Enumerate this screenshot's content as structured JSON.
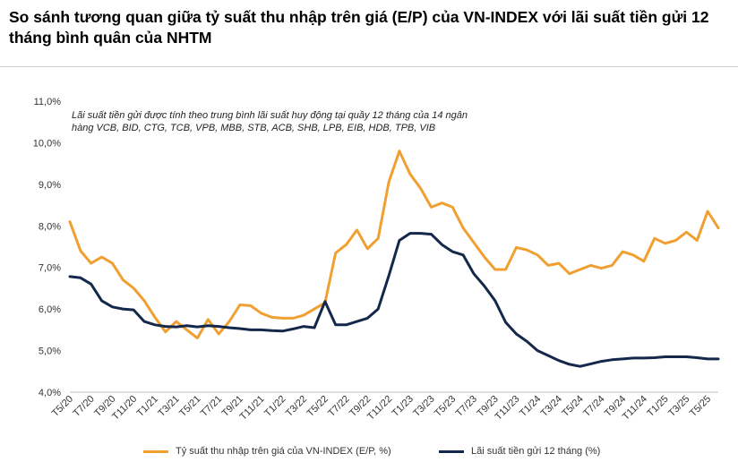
{
  "title": "So sánh tương quan giữa tỷ suất thu nhập trên giá (E/P) của VN-INDEX với lãi suất tiền gửi 12 tháng bình quân của NHTM",
  "chart_data": {
    "type": "line",
    "title": "So sánh tương quan giữa tỷ suất thu nhập trên giá (E/P) của VN-INDEX với lãi suất tiền gửi 12 tháng bình quân của NHTM",
    "annotation": [
      "Lãi suất tiền gửi được tính theo trung bình lãi suất huy động tại quầy 12 tháng của 14 ngân",
      "hàng VCB, BID, CTG, TCB, VPB, MBB, STB, ACB, SHB, LPB, EIB, HDB, TPB, VIB"
    ],
    "ylim": [
      4.0,
      11.0
    ],
    "yticks": [
      "4,0%",
      "5,0%",
      "6,0%",
      "7,0%",
      "8,0%",
      "9,0%",
      "10,0%",
      "11,0%"
    ],
    "x_count": 62,
    "x_ticks": [
      {
        "i": 0,
        "label": "T5/20"
      },
      {
        "i": 2,
        "label": "T7/20"
      },
      {
        "i": 4,
        "label": "T9/20"
      },
      {
        "i": 6,
        "label": "T11/20"
      },
      {
        "i": 8,
        "label": "T1/21"
      },
      {
        "i": 10,
        "label": "T3/21"
      },
      {
        "i": 12,
        "label": "T5/21"
      },
      {
        "i": 14,
        "label": "T7/21"
      },
      {
        "i": 16,
        "label": "T9/21"
      },
      {
        "i": 18,
        "label": "T11/21"
      },
      {
        "i": 20,
        "label": "T1/22"
      },
      {
        "i": 22,
        "label": "T3/22"
      },
      {
        "i": 24,
        "label": "T5/22"
      },
      {
        "i": 26,
        "label": "T7/22"
      },
      {
        "i": 28,
        "label": "T9/22"
      },
      {
        "i": 30,
        "label": "T11/22"
      },
      {
        "i": 32,
        "label": "T1/23"
      },
      {
        "i": 34,
        "label": "T3/23"
      },
      {
        "i": 36,
        "label": "T5/23"
      },
      {
        "i": 38,
        "label": "T7/23"
      },
      {
        "i": 40,
        "label": "T9/23"
      },
      {
        "i": 42,
        "label": "T11/23"
      },
      {
        "i": 44,
        "label": "T1/24"
      },
      {
        "i": 46,
        "label": "T3/24"
      },
      {
        "i": 48,
        "label": "T5/24"
      },
      {
        "i": 50,
        "label": "T7/24"
      },
      {
        "i": 52,
        "label": "T9/24"
      },
      {
        "i": 54,
        "label": "T11/24"
      },
      {
        "i": 56,
        "label": "T1/25"
      },
      {
        "i": 58,
        "label": "T3/25"
      },
      {
        "i": 60,
        "label": "T5/25"
      }
    ],
    "series": [
      {
        "name": "Tỷ suất thu nhập trên giá của VN-INDEX (E/P, %)",
        "color": "#f0a030",
        "values": [
          8.1,
          7.4,
          7.1,
          7.25,
          7.1,
          6.7,
          6.5,
          6.2,
          5.8,
          5.45,
          5.7,
          5.5,
          5.3,
          5.75,
          5.4,
          5.7,
          6.1,
          6.08,
          5.9,
          5.8,
          5.78,
          5.78,
          5.85,
          6.0,
          6.15,
          7.35,
          7.55,
          7.9,
          7.45,
          7.7,
          9.05,
          9.8,
          9.25,
          8.9,
          8.45,
          8.55,
          8.45,
          7.95,
          7.6,
          7.25,
          6.95,
          6.95,
          7.48,
          7.42,
          7.3,
          7.05,
          7.1,
          6.85,
          6.95,
          7.05,
          6.98,
          7.05,
          7.38,
          7.3,
          7.15,
          7.7,
          7.58,
          7.65,
          7.85,
          7.65,
          8.35,
          7.95
        ]
      },
      {
        "name": "Lãi suất tiền gửi 12 tháng  (%)",
        "color": "#14284b",
        "values": [
          6.78,
          6.75,
          6.6,
          6.2,
          6.05,
          6.0,
          5.98,
          5.7,
          5.62,
          5.58,
          5.57,
          5.6,
          5.57,
          5.6,
          5.58,
          5.55,
          5.53,
          5.5,
          5.5,
          5.48,
          5.47,
          5.52,
          5.58,
          5.55,
          6.18,
          5.62,
          5.62,
          5.7,
          5.78,
          6.0,
          6.8,
          7.65,
          7.82,
          7.82,
          7.8,
          7.55,
          7.38,
          7.3,
          6.85,
          6.55,
          6.2,
          5.68,
          5.4,
          5.22,
          5.0,
          4.88,
          4.76,
          4.67,
          4.62,
          4.68,
          4.74,
          4.78,
          4.8,
          4.82,
          4.82,
          4.83,
          4.85,
          4.85,
          4.85,
          4.83,
          4.8,
          4.8
        ]
      }
    ]
  }
}
